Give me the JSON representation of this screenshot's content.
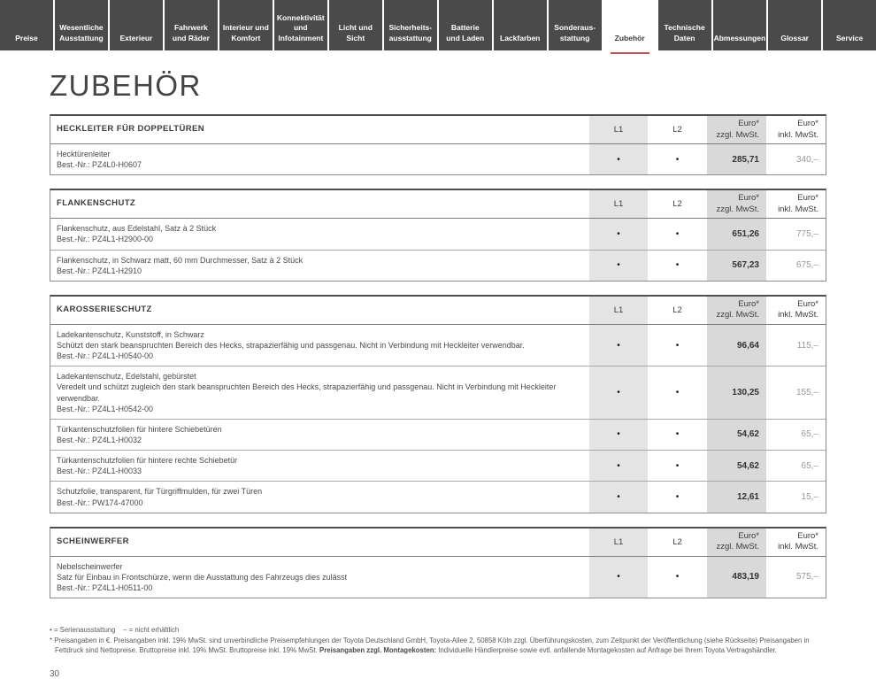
{
  "tabs": [
    {
      "label": "Preise",
      "active": false
    },
    {
      "label": "Wesentliche\nAusstattung",
      "active": false
    },
    {
      "label": "Exterieur",
      "active": false
    },
    {
      "label": "Fahrwerk\nund Räder",
      "active": false
    },
    {
      "label": "Interieur und\nKomfort",
      "active": false
    },
    {
      "label": "Konnektivität\nund\nInfotainment",
      "active": false
    },
    {
      "label": "Licht und Sicht",
      "active": false
    },
    {
      "label": "Sicherheits-\nausstattung",
      "active": false
    },
    {
      "label": "Batterie\nund Laden",
      "active": false
    },
    {
      "label": "Lackfarben",
      "active": false
    },
    {
      "label": "Sonderaus-\nstattung",
      "active": false
    },
    {
      "label": "Zubehör",
      "active": true
    },
    {
      "label": "Technische\nDaten",
      "active": false
    },
    {
      "label": "Abmessungen",
      "active": false
    },
    {
      "label": "Glossar",
      "active": false
    },
    {
      "label": "Service",
      "active": false
    }
  ],
  "page": {
    "title": "ZUBEHÖR",
    "number": "30"
  },
  "colors": {
    "tab_bg": "#4a4a4a",
    "active_tab_underline": "#c4515c",
    "l1_column_bg": "#e4e4e4",
    "excl_column_bg": "#d9d9d9"
  },
  "columns": {
    "l1": "L1",
    "l2": "L2",
    "excl": "Euro*\nzzgl. MwSt.",
    "incl": "Euro*\ninkl. MwSt."
  },
  "tables": [
    {
      "section": "HECKLEITER FÜR DOPPELTÜREN",
      "rows": [
        {
          "desc": "Hecktürenleiter\nBest.-Nr.: PZ4L0-H0607",
          "l1": "•",
          "l2": "•",
          "excl": "285,71",
          "incl": "340,–"
        }
      ]
    },
    {
      "section": "FLANKENSCHUTZ",
      "rows": [
        {
          "desc": "Flankenschutz, aus Edelstahl, Satz à 2 Stück\nBest.-Nr.: PZ4L1-H2900-00",
          "l1": "•",
          "l2": "•",
          "excl": "651,26",
          "incl": "775,–"
        },
        {
          "desc": "Flankenschutz, in Schwarz matt, 60 mm Durchmesser, Satz à 2 Stück\nBest.-Nr.: PZ4L1-H2910",
          "l1": "•",
          "l2": "•",
          "excl": "567,23",
          "incl": "675,–"
        }
      ]
    },
    {
      "section": "KAROSSERIESCHUTZ",
      "rows": [
        {
          "desc": "Ladekantenschutz, Kunststoff, in Schwarz\nSchützt den stark beanspruchten Bereich des Hecks, strapazierfähig und passgenau. Nicht in Verbindung mit Heckleiter verwendbar.\nBest.-Nr.: PZ4L1-H0540-00",
          "l1": "•",
          "l2": "•",
          "excl": "96,64",
          "incl": "115,–"
        },
        {
          "desc": "Ladekantenschutz, Edelstahl, gebürstet\nVeredelt und schützt zugleich den stark beanspruchten Bereich des Hecks, strapazierfähig und passgenau. Nicht in Verbindung mit Heckleiter verwendbar.\nBest.-Nr.: PZ4L1-H0542-00",
          "l1": "•",
          "l2": "•",
          "excl": "130,25",
          "incl": "155,–"
        },
        {
          "desc": "Türkantenschutzfolien für hintere Schiebetüren\nBest.-Nr.: PZ4L1-H0032",
          "l1": "•",
          "l2": "•",
          "excl": "54,62",
          "incl": "65,–"
        },
        {
          "desc": "Türkantenschutzfolien für hintere rechte Schiebetür\nBest.-Nr.: PZ4L1-H0033",
          "l1": "•",
          "l2": "•",
          "excl": "54,62",
          "incl": "65,–"
        },
        {
          "desc": "Schutzfolie, transparent, für Türgriffmulden, für zwei Türen\nBest.-Nr.: PW174-47000",
          "l1": "•",
          "l2": "•",
          "excl": "12,61",
          "incl": "15,–"
        }
      ]
    },
    {
      "section": "SCHEINWERFER",
      "rows": [
        {
          "desc": "Nebelscheinwerfer\nSatz für Einbau in Frontschürze, wenn die Ausstattung des Fahrzeugs dies zulässt\nBest.-Nr.: PZ4L1-H0511-00",
          "l1": "•",
          "l2": "•",
          "excl": "483,19",
          "incl": "575,–"
        }
      ]
    }
  ],
  "footnotes": {
    "legend": "• = Serienausstattung    – = nicht erhältlich",
    "asterisk_pre": "* Preisangaben in €. Preisangaben inkl. 19% MwSt. sind unverbindliche Preisempfehlungen der Toyota Deutschland GmbH, Toyota-Allee 2, 50858 Köln zzgl. Überführungskosten, zum Zeitpunkt der Veröffentlichung (siehe Rückseite) Preisangaben in Fettdruck sind Nettopreise. Bruttopreise inkl. 19% MwSt. Bruttopreise inkl. 19% MwSt. ",
    "asterisk_bold": "Preisangaben zzgl. Montagekosten:",
    "asterisk_post": " Individuelle Händlerpreise sowie evtl. anfallende Montagekosten auf Anfrage bei Ihrem Toyota Vertragshändler."
  }
}
